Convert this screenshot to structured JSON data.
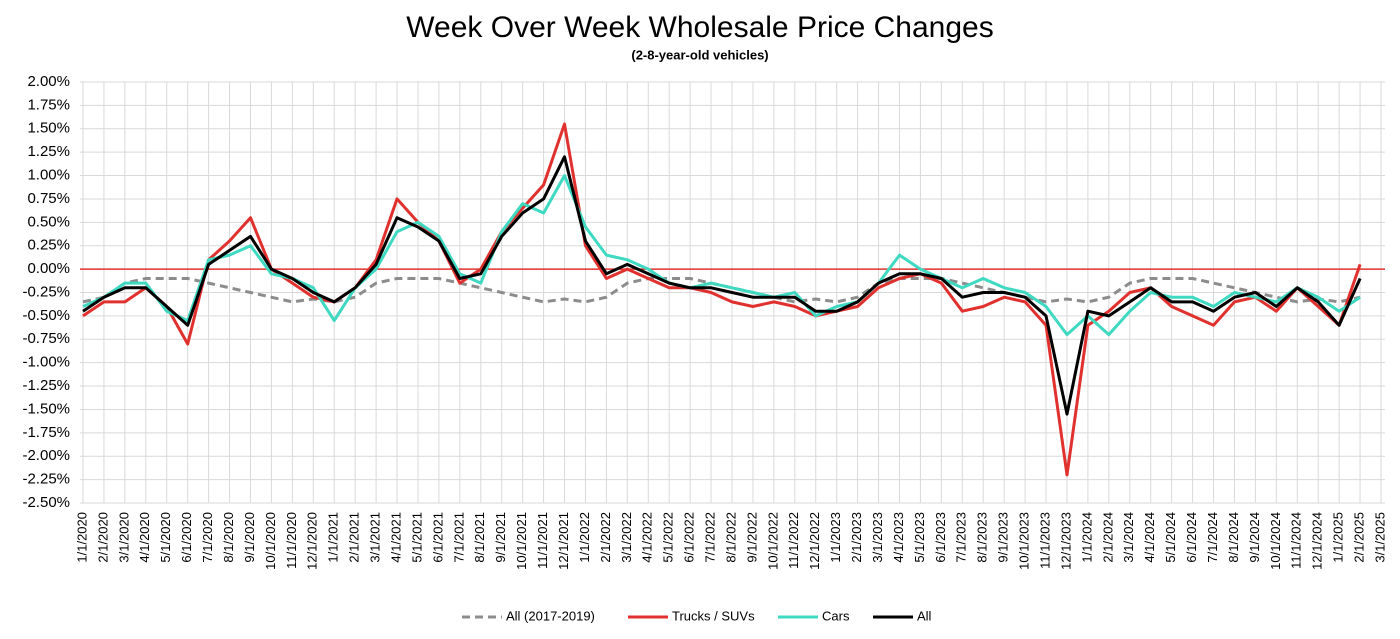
{
  "chart_data": {
    "type": "line",
    "title": "Week Over Week Wholesale Price Changes",
    "subtitle": "(2-8-year-old vehicles)",
    "categories": [
      "1/1/2020",
      "2/1/2020",
      "3/1/2020",
      "4/1/2020",
      "5/1/2020",
      "6/1/2020",
      "7/1/2020",
      "8/1/2020",
      "9/1/2020",
      "10/1/2020",
      "11/1/2020",
      "12/1/2020",
      "1/1/2021",
      "2/1/2021",
      "3/1/2021",
      "4/1/2021",
      "5/1/2021",
      "6/1/2021",
      "7/1/2021",
      "8/1/2021",
      "9/1/2021",
      "10/1/2021",
      "11/1/2021",
      "12/1/2021",
      "1/1/2022",
      "2/1/2022",
      "3/1/2022",
      "4/1/2022",
      "5/1/2022",
      "6/1/2022",
      "7/1/2022",
      "8/1/2022",
      "9/1/2022",
      "10/1/2022",
      "11/1/2022",
      "12/1/2022",
      "1/1/2023",
      "2/1/2023",
      "3/1/2023",
      "4/1/2023",
      "5/1/2023",
      "6/1/2023",
      "7/1/2023",
      "8/1/2023",
      "9/1/2023",
      "10/1/2023",
      "11/1/2023",
      "12/1/2023",
      "1/1/2024",
      "2/1/2024",
      "3/1/2024",
      "4/1/2024",
      "5/1/2024",
      "6/1/2024",
      "7/1/2024",
      "8/1/2024",
      "9/1/2024",
      "10/1/2024",
      "11/1/2024",
      "12/1/2024",
      "1/1/2025",
      "2/1/2025",
      "3/1/2025"
    ],
    "series": [
      {
        "name": "All (2017-2019)",
        "color": "#8c8c8c",
        "dash": true,
        "values": [
          -0.35,
          -0.3,
          -0.15,
          -0.1,
          -0.1,
          -0.1,
          -0.15,
          -0.2,
          -0.25,
          -0.3,
          -0.35,
          -0.32,
          -0.35,
          -0.3,
          -0.15,
          -0.1,
          -0.1,
          -0.1,
          -0.15,
          -0.2,
          -0.25,
          -0.3,
          -0.35,
          -0.32,
          -0.35,
          -0.3,
          -0.15,
          -0.1,
          -0.1,
          -0.1,
          -0.15,
          -0.2,
          -0.25,
          -0.3,
          -0.35,
          -0.32,
          -0.35,
          -0.3,
          -0.15,
          -0.1,
          -0.1,
          -0.1,
          -0.15,
          -0.2,
          -0.25,
          -0.3,
          -0.35,
          -0.32,
          -0.35,
          -0.3,
          -0.15,
          -0.1,
          -0.1,
          -0.1,
          -0.15,
          -0.2,
          -0.25,
          -0.3,
          -0.35,
          -0.32,
          -0.35,
          -0.3,
          null
        ]
      },
      {
        "name": "Trucks / SUVs",
        "color": "#e0312f",
        "values": [
          -0.5,
          -0.35,
          -0.35,
          -0.2,
          -0.4,
          -0.8,
          0.1,
          0.3,
          0.55,
          0.0,
          -0.15,
          -0.3,
          -0.35,
          -0.2,
          0.1,
          0.75,
          0.5,
          0.3,
          -0.15,
          0.0,
          0.4,
          0.65,
          0.9,
          1.55,
          0.25,
          -0.1,
          0.0,
          -0.1,
          -0.2,
          -0.2,
          -0.25,
          -0.35,
          -0.4,
          -0.35,
          -0.4,
          -0.5,
          -0.45,
          -0.4,
          -0.2,
          -0.1,
          -0.05,
          -0.15,
          -0.45,
          -0.4,
          -0.3,
          -0.35,
          -0.6,
          -2.2,
          -0.6,
          -0.45,
          -0.25,
          -0.2,
          -0.4,
          -0.5,
          -0.6,
          -0.35,
          -0.3,
          -0.45,
          -0.2,
          -0.4,
          -0.6,
          0.05,
          null
        ]
      },
      {
        "name": "Cars",
        "color": "#3fd9c1",
        "values": [
          -0.4,
          -0.3,
          -0.15,
          -0.15,
          -0.45,
          -0.55,
          0.1,
          0.15,
          0.25,
          -0.05,
          -0.1,
          -0.2,
          -0.55,
          -0.2,
          0.0,
          0.4,
          0.5,
          0.35,
          -0.05,
          -0.15,
          0.4,
          0.7,
          0.6,
          1.0,
          0.45,
          0.15,
          0.1,
          0.0,
          -0.15,
          -0.2,
          -0.15,
          -0.2,
          -0.25,
          -0.3,
          -0.25,
          -0.5,
          -0.4,
          -0.35,
          -0.15,
          0.15,
          0.0,
          -0.1,
          -0.2,
          -0.1,
          -0.2,
          -0.25,
          -0.4,
          -0.7,
          -0.5,
          -0.7,
          -0.45,
          -0.25,
          -0.3,
          -0.3,
          -0.4,
          -0.25,
          -0.3,
          -0.35,
          -0.2,
          -0.3,
          -0.45,
          -0.3,
          null
        ]
      },
      {
        "name": "All",
        "color": "#000000",
        "values": [
          -0.45,
          -0.3,
          -0.2,
          -0.2,
          -0.4,
          -0.6,
          0.05,
          0.2,
          0.35,
          0.0,
          -0.1,
          -0.25,
          -0.35,
          -0.2,
          0.05,
          0.55,
          0.45,
          0.3,
          -0.1,
          -0.05,
          0.35,
          0.6,
          0.75,
          1.2,
          0.3,
          -0.05,
          0.05,
          -0.05,
          -0.15,
          -0.2,
          -0.2,
          -0.25,
          -0.3,
          -0.3,
          -0.3,
          -0.45,
          -0.45,
          -0.35,
          -0.15,
          -0.05,
          -0.05,
          -0.1,
          -0.3,
          -0.25,
          -0.25,
          -0.3,
          -0.5,
          -1.55,
          -0.45,
          -0.5,
          -0.35,
          -0.2,
          -0.35,
          -0.35,
          -0.45,
          -0.3,
          -0.25,
          -0.4,
          -0.2,
          -0.35,
          -0.6,
          -0.1,
          null
        ]
      }
    ],
    "ylim": [
      -2.5,
      2
    ],
    "yticks": [
      {
        "value": 2,
        "label": "2.00%"
      },
      {
        "value": 1.75,
        "label": "1.75%"
      },
      {
        "value": 1.5,
        "label": "1.50%"
      },
      {
        "value": 1.25,
        "label": "1.25%"
      },
      {
        "value": 1,
        "label": "1.00%"
      },
      {
        "value": 0.75,
        "label": "0.75%"
      },
      {
        "value": 0.5,
        "label": "0.50%"
      },
      {
        "value": 0.25,
        "label": "0.25%"
      },
      {
        "value": 0,
        "label": "0.00%"
      },
      {
        "value": -0.25,
        "label": "-0.25%"
      },
      {
        "value": -0.5,
        "label": "-0.50%"
      },
      {
        "value": -0.75,
        "label": "-0.75%"
      },
      {
        "value": -1,
        "label": "-1.00%"
      },
      {
        "value": -1.25,
        "label": "-1.25%"
      },
      {
        "value": -1.5,
        "label": "-1.50%"
      },
      {
        "value": -1.75,
        "label": "-1.75%"
      },
      {
        "value": -2,
        "label": "-2.00%"
      },
      {
        "value": -2.25,
        "label": "-2.25%"
      },
      {
        "value": -2.5,
        "label": "-2.50%"
      }
    ],
    "grid": true,
    "baseline_color": "#e0312f",
    "legend": "bottom"
  }
}
